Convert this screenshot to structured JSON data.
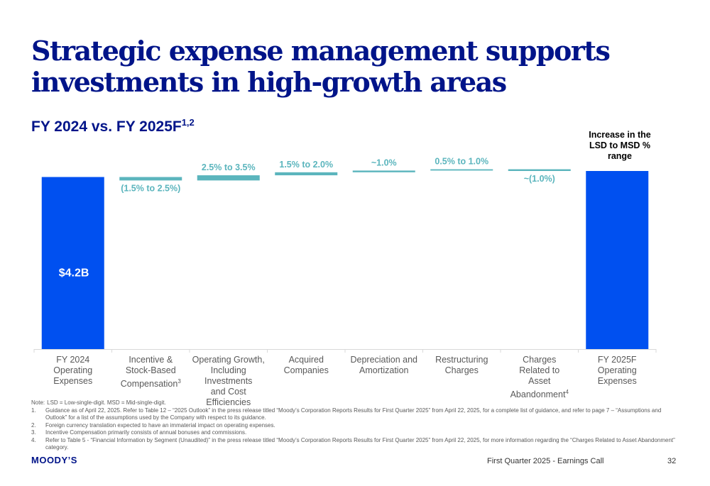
{
  "slide": {
    "title": "Strategic expense management supports investments in high-growth areas",
    "subtitle": "FY 2024 vs. FY 2025F",
    "subtitle_refs": "1,2",
    "end_note": "Increase in the LSD to MSD % range"
  },
  "chart_data": {
    "type": "waterfall",
    "categories": [
      {
        "lines": [
          "FY 2024",
          "Operating Expenses"
        ],
        "ref": ""
      },
      {
        "lines": [
          "Incentive &",
          "Stock-Based",
          "Compensation"
        ],
        "ref": "3"
      },
      {
        "lines": [
          "Operating Growth,",
          "Including Investments",
          "and Cost Efficiencies"
        ],
        "ref": ""
      },
      {
        "lines": [
          "Acquired",
          "Companies"
        ],
        "ref": ""
      },
      {
        "lines": [
          "Depreciation and",
          "Amortization"
        ],
        "ref": ""
      },
      {
        "lines": [
          "Restructuring",
          "Charges"
        ],
        "ref": ""
      },
      {
        "lines": [
          "Charges",
          "Related to",
          "Asset Abandonment"
        ],
        "ref": "4"
      },
      {
        "lines": [
          "FY 2025F",
          "Operating Expenses"
        ],
        "ref": ""
      }
    ],
    "steps": [
      {
        "kind": "total",
        "value": 100,
        "label": "$4.2B"
      },
      {
        "kind": "delta",
        "value": -2.0,
        "label": "(1.5% to 2.5%)"
      },
      {
        "kind": "delta",
        "value": 3.0,
        "label": "2.5% to 3.5%"
      },
      {
        "kind": "delta",
        "value": 1.75,
        "label": "1.5% to 2.0%"
      },
      {
        "kind": "delta",
        "value": 1.0,
        "label": "~1.0%"
      },
      {
        "kind": "delta",
        "value": 0.75,
        "label": "0.5% to 1.0%"
      },
      {
        "kind": "delta",
        "value": -1.0,
        "label": "~(1.0%)"
      },
      {
        "kind": "total",
        "value": 103.5,
        "label": ""
      }
    ],
    "colors": {
      "total": "#0050F0",
      "delta": "#5BB5BD",
      "label_delta": "#5BB5BD",
      "label_total": "#FFFFFF"
    }
  },
  "notes": [
    {
      "num": "Note:",
      "text": "LSD = Low-single-digit. MSD = Mid-single-digit."
    },
    {
      "num": "1.",
      "text": "Guidance as of April 22, 2025. Refer to Table 12 – “2025 Outlook” in the press release titled “Moody’s Corporation Reports Results for First Quarter 2025” from April 22, 2025, for a complete list of guidance, and refer to page 7 – “Assumptions and Outlook” for a list of the assumptions used by the Company with respect to its guidance."
    },
    {
      "num": "2.",
      "text": "Foreign currency translation expected to have an immaterial impact on operating expenses."
    },
    {
      "num": "3.",
      "text": "Incentive Compensation primarily consists of annual bonuses and commissions."
    },
    {
      "num": "4.",
      "text": "Refer to Table 5 - “Financial Information by Segment (Unaudited)” in the press release titled “Moody’s Corporation Reports Results for First Quarter 2025” from April 22, 2025, for more information regarding the “Charges Related to Asset Abandonment” category."
    }
  ],
  "footer": {
    "logo": "MOODY’S",
    "event": "First Quarter 2025 - Earnings Call",
    "page": "32"
  }
}
